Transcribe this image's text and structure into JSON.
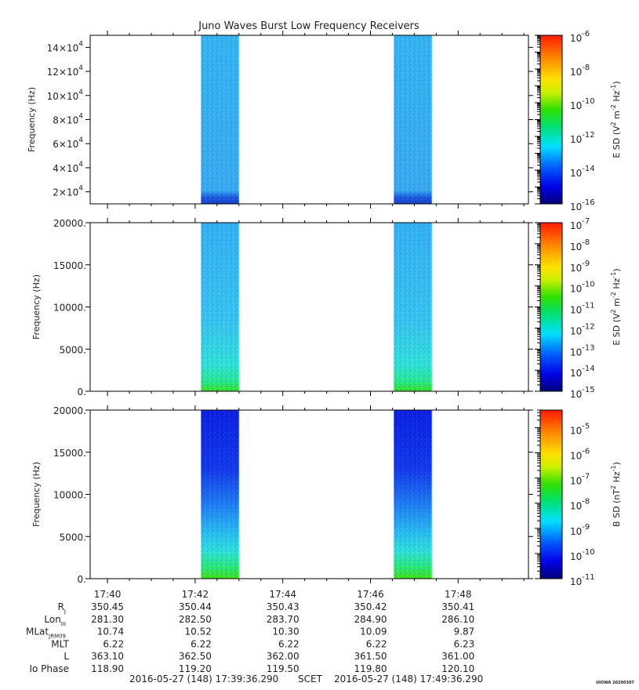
{
  "chart_data": {
    "type": "heatmap",
    "title": "Juno Waves Burst Low Frequency Receivers",
    "time_range": [
      "17:39:36.290",
      "17:49:36.290"
    ],
    "x_tick_labels": [
      "17:40",
      "17:42",
      "17:44",
      "17:46",
      "17:48"
    ],
    "bursts": [
      {
        "start": "17:42:08",
        "end": "17:43:00"
      },
      {
        "start": "17:46:32",
        "end": "17:47:24"
      }
    ],
    "panels": [
      {
        "ylabel": "Frequency (Hz)",
        "ylim": [
          10000,
          150000
        ],
        "y_ticks": [
          {
            "value": 20000,
            "mant": "2",
            "exp": "4"
          },
          {
            "value": 40000,
            "mant": "4",
            "exp": "4"
          },
          {
            "value": 60000,
            "mant": "6",
            "exp": "4"
          },
          {
            "value": 80000,
            "mant": "8",
            "exp": "4"
          },
          {
            "value": 100000,
            "mant": "10",
            "exp": "4"
          },
          {
            "value": 120000,
            "mant": "12",
            "exp": "4"
          },
          {
            "value": 140000,
            "mant": "14",
            "exp": "4"
          }
        ],
        "colorbar": {
          "label_prefix": "E SD (V",
          "label_mid": " m",
          "label_mid2": " Hz",
          "label_end": ")",
          "log_range": [
            -16,
            -6
          ],
          "tick_labels": [
            {
              "value": -6,
              "label": "10",
              "exp": "-6"
            },
            {
              "value": -8,
              "label": "10",
              "exp": "-8"
            },
            {
              "value": -10,
              "label": "10",
              "exp": "-10"
            },
            {
              "value": -12,
              "label": "10",
              "exp": "-12"
            },
            {
              "value": -14,
              "label": "10",
              "exp": "-14"
            },
            {
              "value": -16,
              "label": "10",
              "exp": "-16"
            }
          ]
        },
        "fill": "mid"
      },
      {
        "ylabel": "Frequency (Hz)",
        "ylim": [
          0,
          20000
        ],
        "y_ticks": [
          {
            "value": 0,
            "label": "0."
          },
          {
            "value": 5000,
            "label": "5000."
          },
          {
            "value": 10000,
            "label": "10000."
          },
          {
            "value": 15000,
            "label": "15000."
          },
          {
            "value": 20000,
            "label": "20000."
          }
        ],
        "colorbar": {
          "label_prefix": "E SD (V",
          "label_mid": " m",
          "label_mid2": " Hz",
          "label_end": ")",
          "log_range": [
            -15,
            -7
          ],
          "tick_labels": [
            {
              "value": -7,
              "label": "10",
              "exp": "-7"
            },
            {
              "value": -8,
              "label": "10",
              "exp": "-8"
            },
            {
              "value": -9,
              "label": "10",
              "exp": "-9"
            },
            {
              "value": -10,
              "label": "10",
              "exp": "-10"
            },
            {
              "value": -11,
              "label": "10",
              "exp": "-11"
            },
            {
              "value": -12,
              "label": "10",
              "exp": "-12"
            },
            {
              "value": -13,
              "label": "10",
              "exp": "-13"
            },
            {
              "value": -14,
              "label": "10",
              "exp": "-14"
            },
            {
              "value": -15,
              "label": "10",
              "exp": "-15"
            }
          ]
        },
        "fill": "lowE"
      },
      {
        "ylabel": "Frequency (Hz)",
        "ylim": [
          0,
          20000
        ],
        "y_ticks": [
          {
            "value": 0,
            "label": "0."
          },
          {
            "value": 5000,
            "label": "5000."
          },
          {
            "value": 10000,
            "label": "10000."
          },
          {
            "value": 15000,
            "label": "15000."
          },
          {
            "value": 20000,
            "label": "20000."
          }
        ],
        "colorbar": {
          "label_prefix": "B SD (nT",
          "label_mid": " Hz",
          "label_mid2": "",
          "label_end": ")",
          "log_range": [
            -11,
            -4.3
          ],
          "tick_labels": [
            {
              "value": -5,
              "label": "10",
              "exp": "-5"
            },
            {
              "value": -6,
              "label": "10",
              "exp": "-6"
            },
            {
              "value": -7,
              "label": "10",
              "exp": "-7"
            },
            {
              "value": -8,
              "label": "10",
              "exp": "-8"
            },
            {
              "value": -9,
              "label": "10",
              "exp": "-9"
            },
            {
              "value": -10,
              "label": "10",
              "exp": "-10"
            },
            {
              "value": -11,
              "label": "10",
              "exp": "-11"
            }
          ]
        },
        "fill": "lowB"
      }
    ],
    "ephemeris": {
      "rows": [
        {
          "label": "R",
          "sub": "J",
          "values": [
            "350.45",
            "350.44",
            "350.43",
            "350.42",
            "350.41"
          ]
        },
        {
          "label": "Lon",
          "sub": "III",
          "values": [
            "281.30",
            "282.50",
            "283.70",
            "284.90",
            "286.10"
          ]
        },
        {
          "label": "MLat",
          "sub": "JRM09",
          "values": [
            "10.74",
            "10.52",
            "10.30",
            "10.09",
            "9.87"
          ]
        },
        {
          "label": "MLT",
          "sub": "",
          "values": [
            "6.22",
            "6.22",
            "6.22",
            "6.22",
            "6.23"
          ]
        },
        {
          "label": "L",
          "sub": "",
          "values": [
            "363.10",
            "362.50",
            "362.00",
            "361.50",
            "361.00"
          ]
        },
        {
          "label": "Io Phase",
          "sub": "",
          "values": [
            "118.90",
            "119.20",
            "119.50",
            "119.80",
            "120.10"
          ]
        }
      ]
    },
    "footer": {
      "start": "2016-05-27 (148) 17:39:36.290",
      "scet": "SCET",
      "end": "2016-05-27 (148) 17:49:36.290",
      "stamp": "UIOWA 20200307"
    }
  }
}
